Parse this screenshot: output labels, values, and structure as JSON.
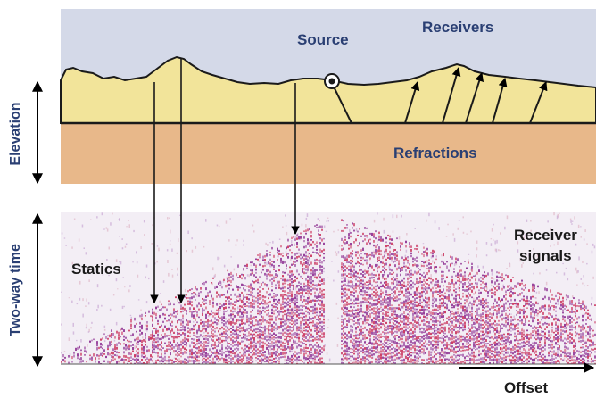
{
  "labels": {
    "source": "Source",
    "receivers": "Receivers",
    "refractions": "Refractions",
    "statics": "Statics",
    "receiver_signals_line1": "Receiver",
    "receiver_signals_line2": "signals",
    "offset": "Offset",
    "elevation_axis": "Elevation",
    "twoway_time_axis": "Two-way time"
  },
  "colors": {
    "sky": "#d4d9e8",
    "surface_layer": "#f2e49a",
    "refraction_layer": "#e8b88a",
    "seismic_magenta": "#8a2a8f",
    "seismic_red": "#c82a55",
    "label_blue": "#2a3f73",
    "label_dark": "#1a1a1a"
  },
  "icons": {
    "source_marker": "source-marker-icon",
    "elevation_arrow": "double-arrow-icon",
    "time_arrow": "double-arrow-icon",
    "offset_arrow": "arrow-right-icon"
  }
}
